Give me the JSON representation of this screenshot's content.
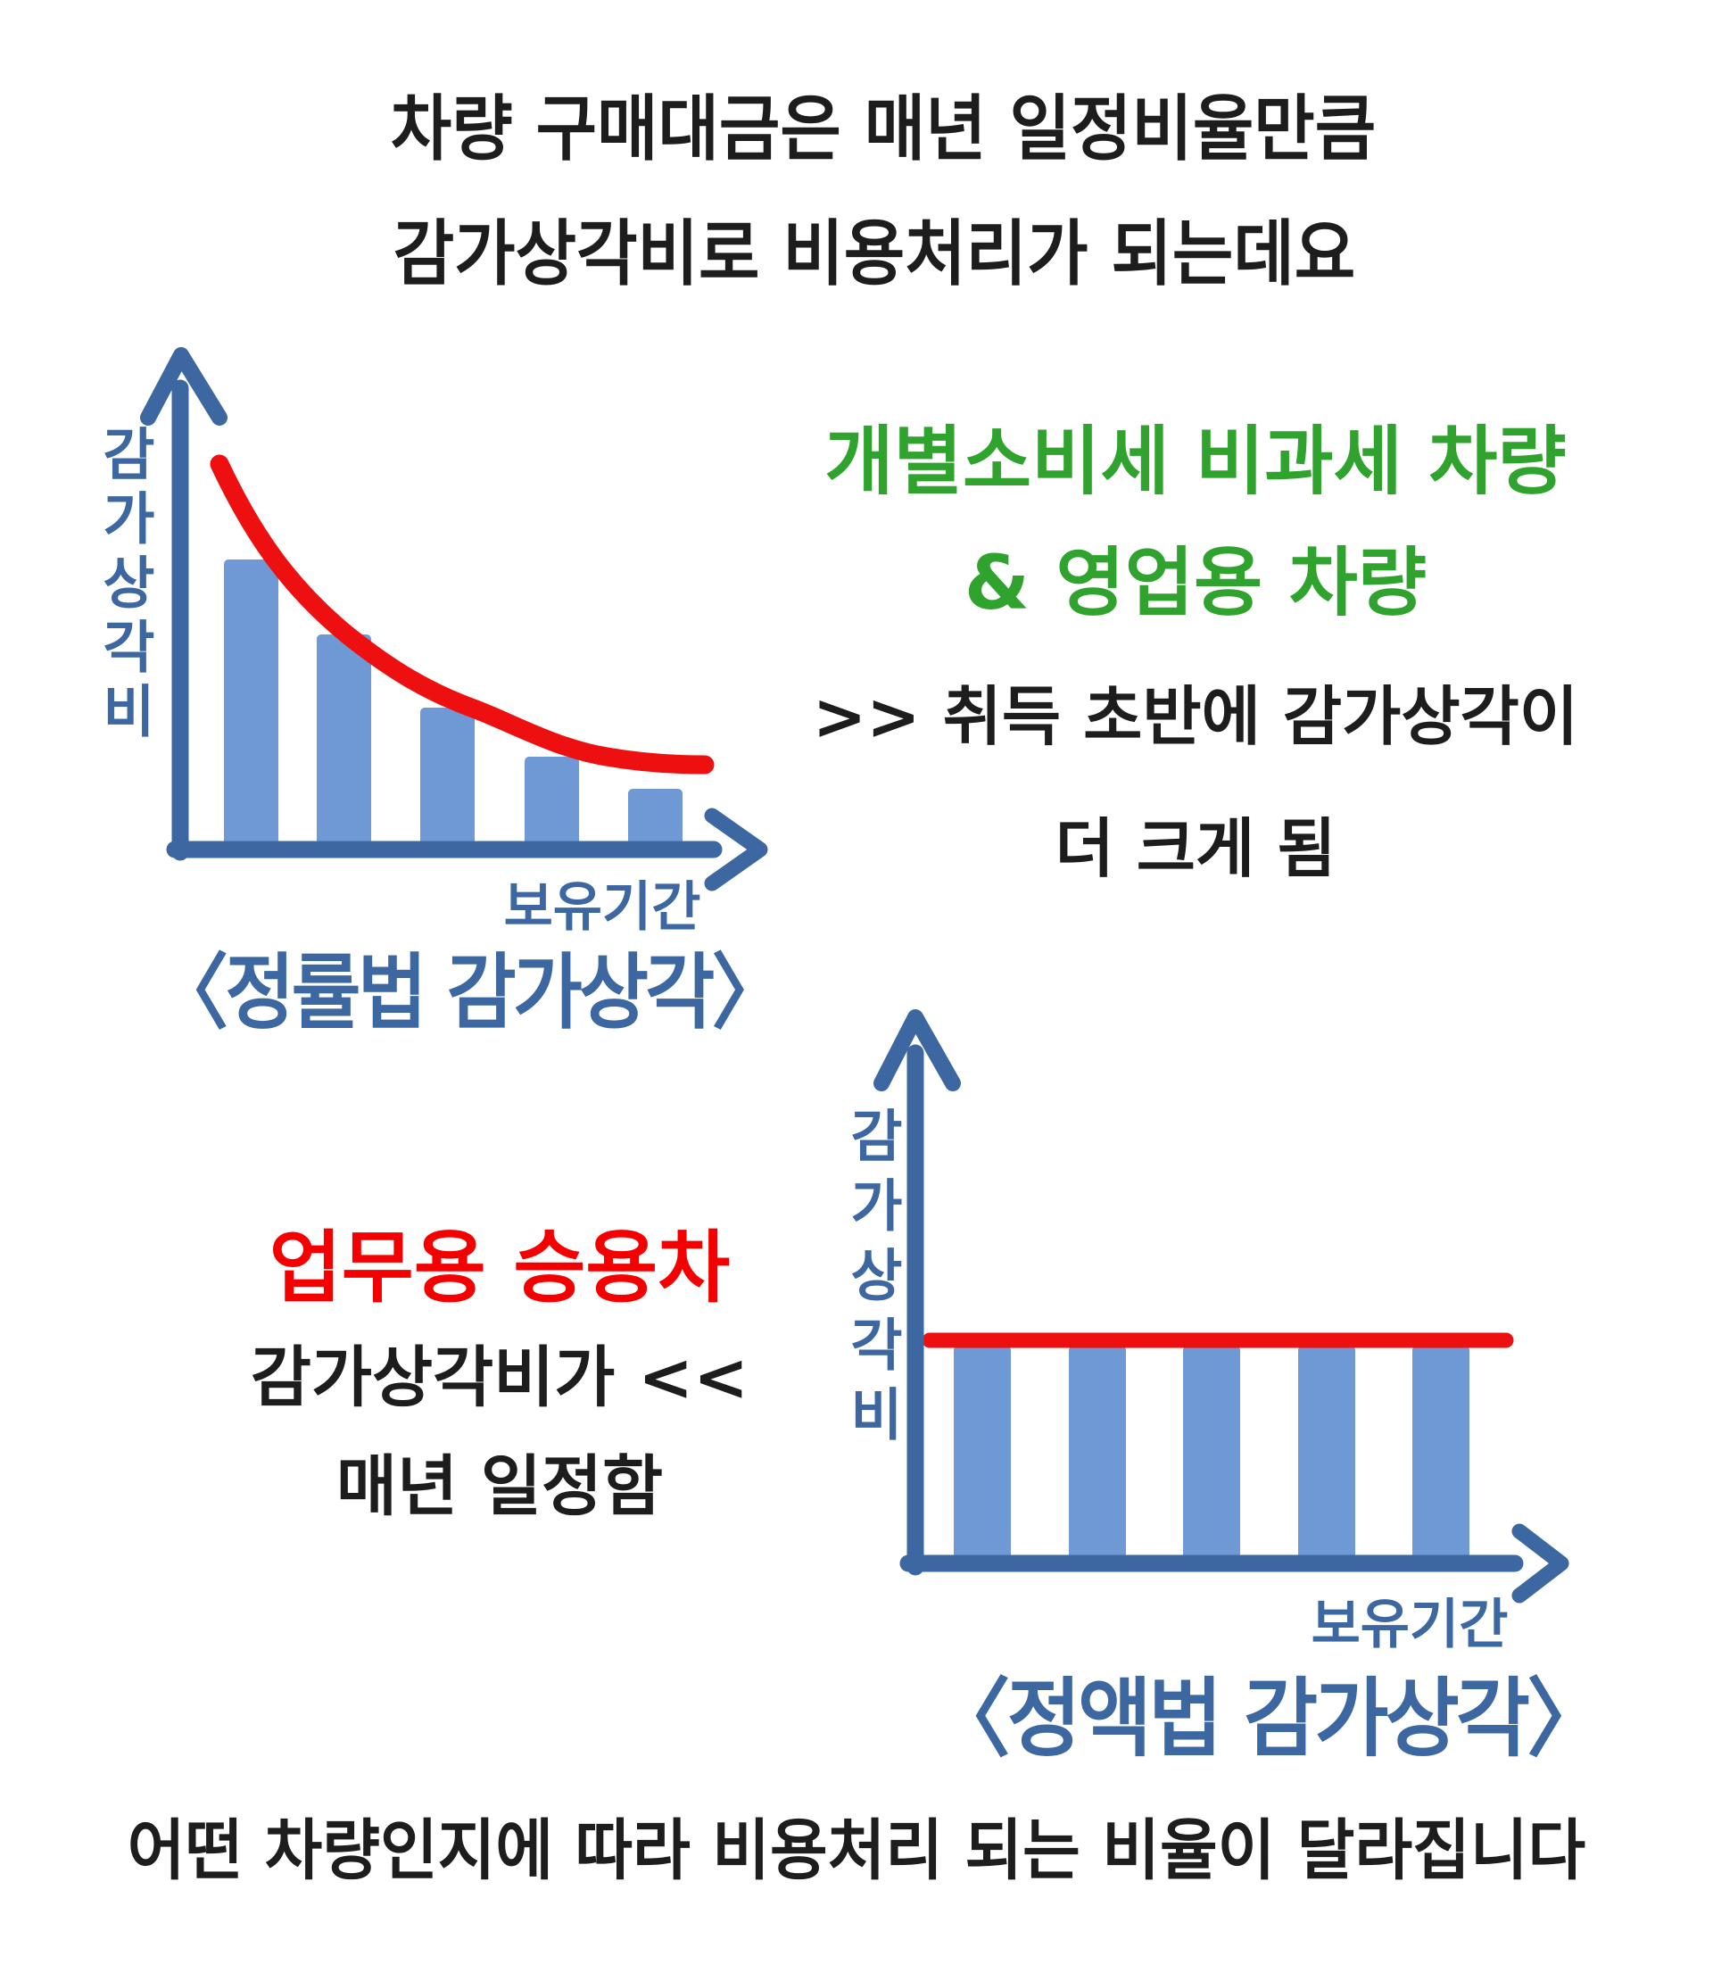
{
  "page": {
    "title_line1": "차량 구매대금은 매년 일정비율만큼",
    "title_line2": "감가상각비로 비용처리가 되는데요",
    "footer": "어떤 차량인지에 따라 비용처리 되는 비율이 달라집니다"
  },
  "colors": {
    "ink": "#1d1d1d",
    "axis_blue": "#3d67a1",
    "bar_blue": "#6f99d4",
    "line_red": "#ee1010",
    "text_red": "#f40000",
    "text_green": "#2fa32d"
  },
  "annotations": {
    "green_group_line1": "개별소비세 비과세 차량",
    "green_group_line2": "& 영업용 차량",
    "green_note_line1": ">> 취득 초반에 감가상각이",
    "green_note_line2": "더 크게 됨",
    "red_group_title": "업무용 승용차",
    "red_note_line1": "감가상각비가 <<",
    "red_note_line2": "매년 일정함"
  },
  "chart_data": [
    {
      "type": "bar",
      "title": "〈정률법 감가상각〉",
      "ylabel": "감가상각비",
      "xlabel": "보유기간",
      "x": [
        1,
        2,
        3,
        4,
        5
      ],
      "values_relative": [
        1.0,
        0.74,
        0.49,
        0.32,
        0.21
      ],
      "overlay_line": "declining-exponential-curve",
      "overlay_color": "#ee1010",
      "bar_color": "#6f99d4",
      "axes": "unlabeled-hand-drawn-arrows"
    },
    {
      "type": "bar",
      "title": "〈정액법 감가상각〉",
      "ylabel": "감가상각비",
      "xlabel": "보유기간",
      "x": [
        1,
        2,
        3,
        4,
        5
      ],
      "values_relative": [
        1.0,
        1.0,
        1.0,
        1.0,
        1.0
      ],
      "overlay_line": "flat-horizontal-line",
      "overlay_color": "#ee1010",
      "bar_color": "#6f99d4",
      "axes": "unlabeled-hand-drawn-arrows"
    }
  ]
}
